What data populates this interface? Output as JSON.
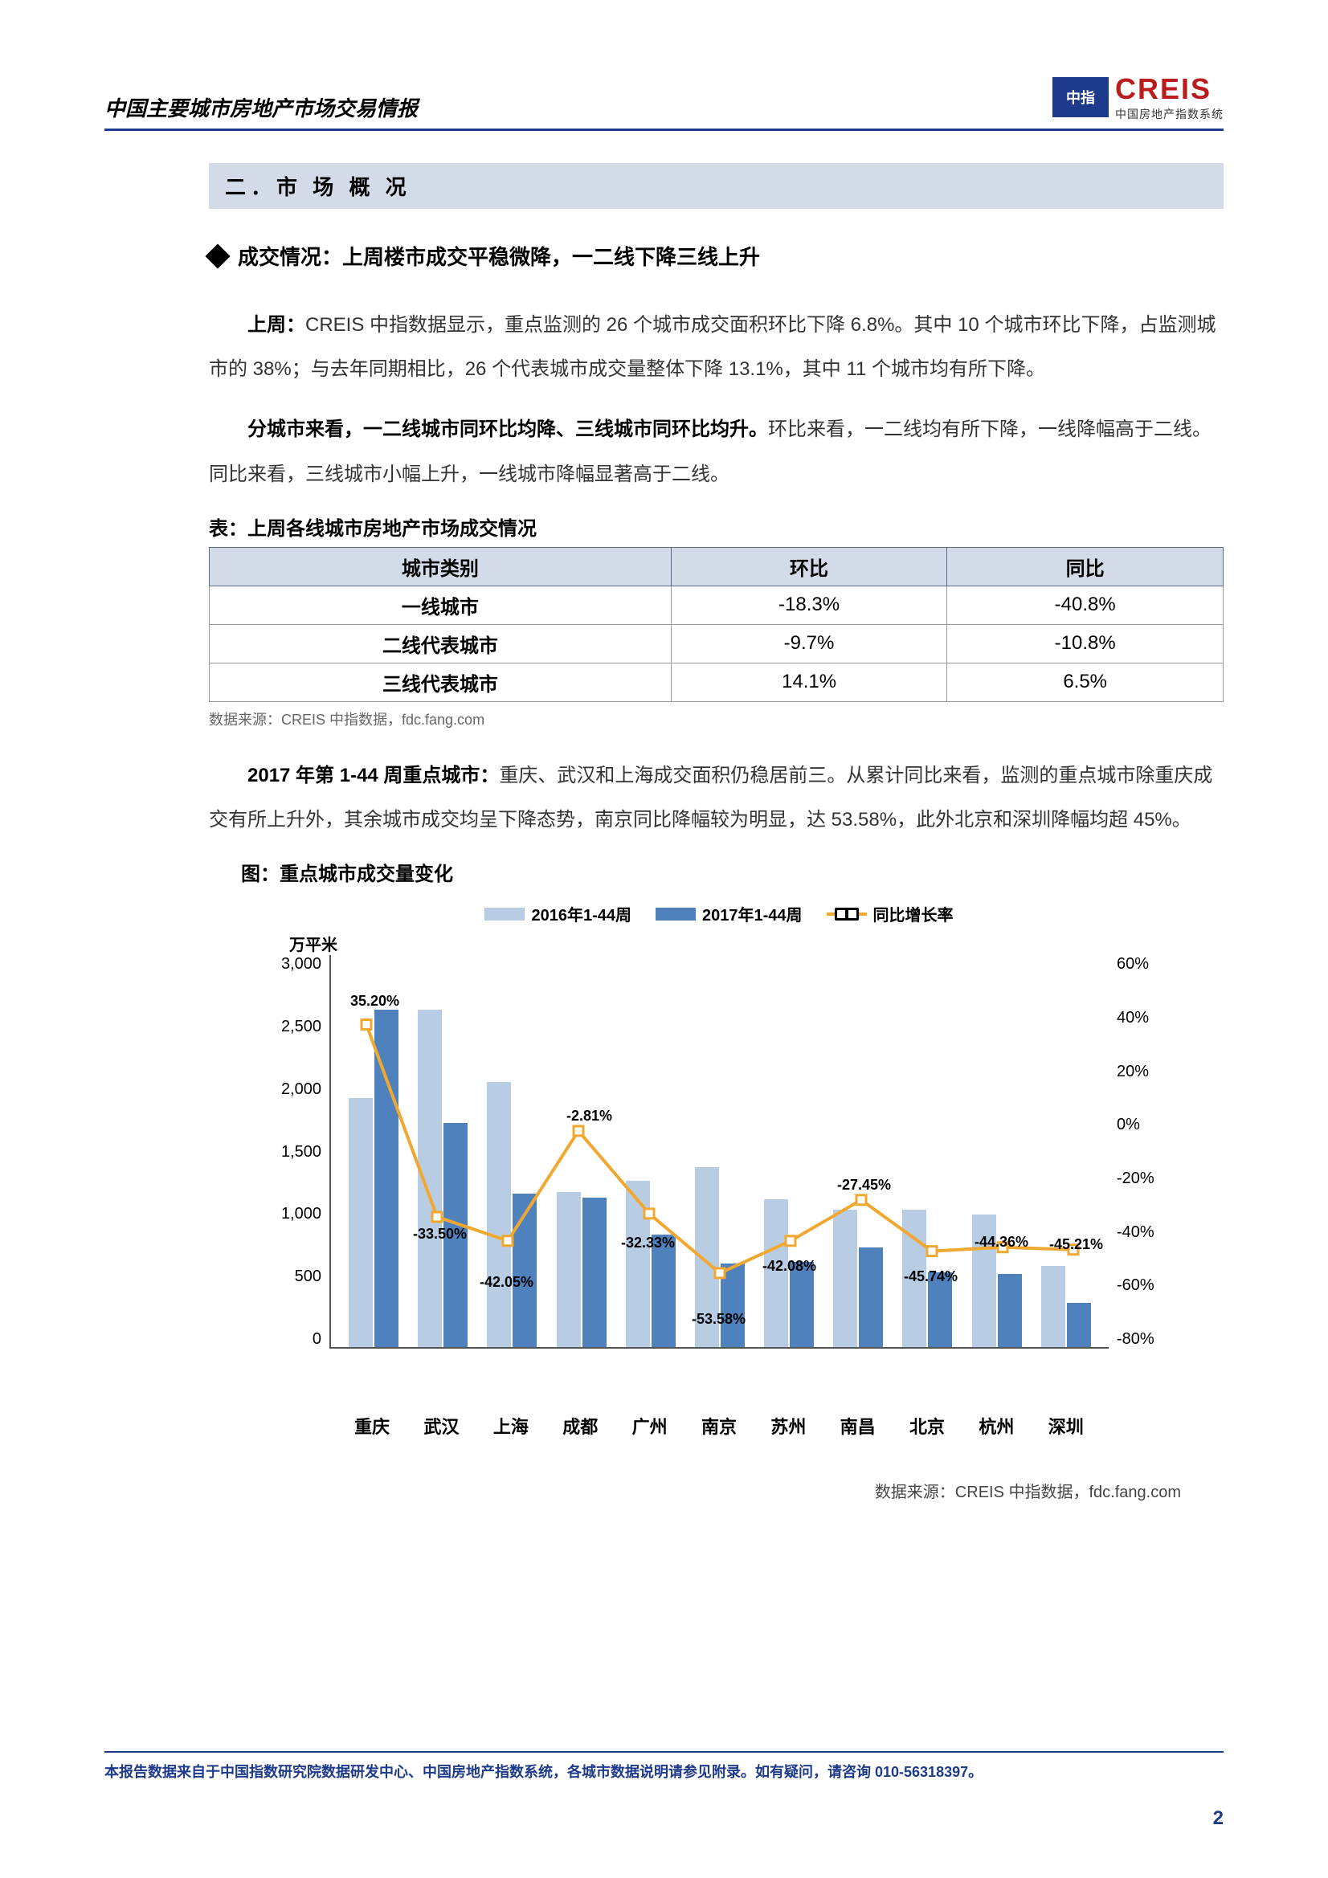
{
  "header": {
    "title": "中国主要城市房地产市场交易情报",
    "logo_main": "CREIS",
    "logo_sub": "中国房地产指数系统"
  },
  "section_title": "二．市 场  概 况",
  "sub_heading": "成交情况：上周楼市成交平稳微降，一二线下降三线上升",
  "para1_bold": "上周：",
  "para1_text": "CREIS 中指数据显示，重点监测的 26 个城市成交面积环比下降 6.8%。其中 10 个城市环比下降，占监测城市的 38%；与去年同期相比，26 个代表城市成交量整体下降 13.1%，其中 11 个城市均有所下降。",
  "para2_bold": "分城市来看，一二线城市同环比均降、三线城市同环比均升。",
  "para2_text": "环比来看，一二线均有所下降，一线降幅高于二线。同比来看，三线城市小幅上升，一线城市降幅显著高于二线。",
  "table": {
    "caption": "表：上周各线城市房地产市场成交情况",
    "headers": [
      "城市类别",
      "环比",
      "同比"
    ],
    "rows": [
      [
        "一线城市",
        "-18.3%",
        "-40.8%"
      ],
      [
        "二线代表城市",
        "-9.7%",
        "-10.8%"
      ],
      [
        "三线代表城市",
        "14.1%",
        "6.5%"
      ]
    ],
    "source": "数据来源：CREIS 中指数据，fdc.fang.com"
  },
  "para3_bold": "2017 年第 1-44 周重点城市：",
  "para3_text": "重庆、武汉和上海成交面积仍稳居前三。从累计同比来看，监测的重点城市除重庆成交有所上升外，其余城市成交均呈下降态势，南京同比降幅较为明显，达 53.58%，此外北京和深圳降幅均超 45%。",
  "chart": {
    "caption": "图：重点城市成交量变化",
    "legend": [
      "2016年1-44周",
      "2017年1-44周",
      "同比增长率"
    ],
    "y_left_label": "万平米",
    "y_left_ticks": [
      "3,000",
      "2,500",
      "2,000",
      "1,500",
      "1,000",
      "500",
      "0"
    ],
    "y_left_max": 3000,
    "y_right_ticks": [
      "60%",
      "40%",
      "20%",
      "0%",
      "-20%",
      "-40%",
      "-60%",
      "-80%"
    ],
    "y_right_max": 60,
    "y_right_min": -80,
    "categories": [
      "重庆",
      "武汉",
      "上海",
      "成都",
      "广州",
      "南京",
      "苏州",
      "南昌",
      "北京",
      "杭州",
      "深圳"
    ],
    "series_2016": [
      1900,
      2570,
      2020,
      1180,
      1270,
      1370,
      1130,
      1050,
      1050,
      1010,
      620
    ],
    "series_2017": [
      2570,
      1710,
      1170,
      1140,
      860,
      640,
      650,
      760,
      570,
      560,
      340
    ],
    "growth": [
      35.2,
      -33.5,
      -42.05,
      -2.81,
      -32.33,
      -53.58,
      -42.08,
      -27.45,
      -45.74,
      -44.36,
      -45.21
    ],
    "growth_labels": [
      "35.20%",
      "-33.50%",
      "-42.05%",
      "-2.81%",
      "-32.33%",
      "-53.58%",
      "-42.08%",
      "-27.45%",
      "-45.74%",
      "-44.36%",
      "-45.21%"
    ],
    "colors": {
      "bar_2016": "#b8cce4",
      "bar_2017": "#4f81bd",
      "line": "#f0a830"
    },
    "source": "数据来源：CREIS 中指数据，fdc.fang.com"
  },
  "footer": "本报告数据来自于中国指数研究院数据研发中心、中国房地产指数系统，各城市数据说明请参见附录。如有疑问，请咨询 010-56318397。",
  "page_number": "2"
}
